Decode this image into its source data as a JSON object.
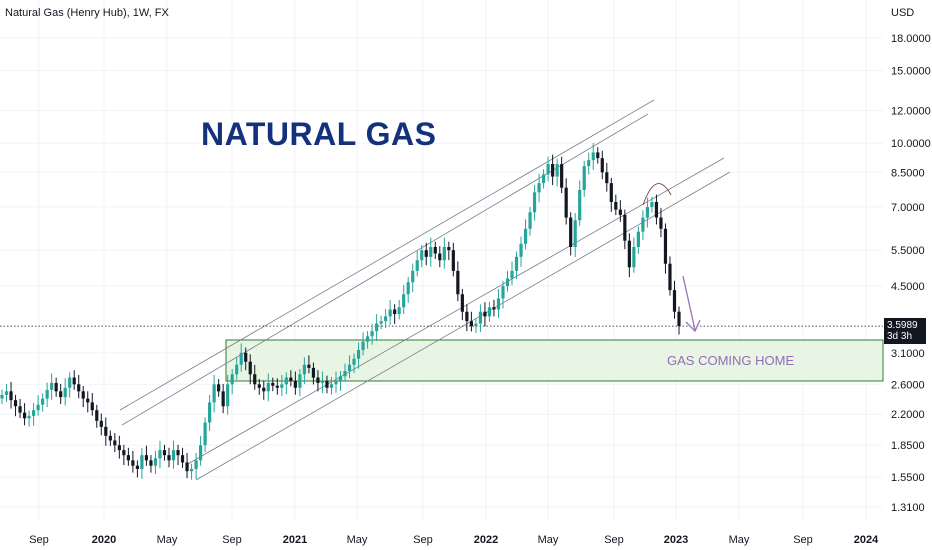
{
  "header": {
    "symbol_line": "Natural Gas (Henry Hub), 1W, FX",
    "currency": "USD"
  },
  "annotations": {
    "title": "NATURAL GAS",
    "zone_label": "GAS COMING HOME"
  },
  "last_price": {
    "price": "3.5989",
    "countdown": "3d 3h"
  },
  "colors": {
    "up": "#26a69a",
    "down": "#131722",
    "channel": "#787b86",
    "zone_fill": "#e8f4e4",
    "zone_border": "#2e7d32",
    "arrow": "#9c7bb8",
    "title": "#14317d"
  },
  "chart_data": {
    "type": "candlestick",
    "y_scale": "log",
    "y_ticks": [
      "18.0000",
      "15.0000",
      "12.0000",
      "10.0000",
      "8.5000",
      "7.0000",
      "5.5000",
      "4.5000",
      "3.1000",
      "2.6000",
      "2.2000",
      "1.8500",
      "1.5500",
      "1.3100"
    ],
    "x_ticks": [
      {
        "label": "Sep",
        "year": false
      },
      {
        "label": "2020",
        "year": true
      },
      {
        "label": "May",
        "year": false
      },
      {
        "label": "Sep",
        "year": false
      },
      {
        "label": "2021",
        "year": true
      },
      {
        "label": "May",
        "year": false
      },
      {
        "label": "Sep",
        "year": false
      },
      {
        "label": "2022",
        "year": true
      },
      {
        "label": "May",
        "year": false
      },
      {
        "label": "Sep",
        "year": false
      },
      {
        "label": "2023",
        "year": true
      },
      {
        "label": "May",
        "year": false
      },
      {
        "label": "Sep",
        "year": false
      },
      {
        "label": "2024",
        "year": true
      }
    ],
    "closes": [
      2.45,
      2.5,
      2.38,
      2.3,
      2.22,
      2.15,
      2.18,
      2.25,
      2.32,
      2.4,
      2.52,
      2.62,
      2.5,
      2.42,
      2.55,
      2.7,
      2.6,
      2.5,
      2.4,
      2.35,
      2.25,
      2.12,
      2.05,
      1.95,
      1.9,
      1.85,
      1.8,
      1.75,
      1.7,
      1.65,
      1.62,
      1.75,
      1.7,
      1.65,
      1.72,
      1.8,
      1.75,
      1.7,
      1.8,
      1.75,
      1.68,
      1.6,
      1.62,
      1.7,
      1.85,
      2.1,
      2.35,
      2.6,
      2.5,
      2.3,
      2.6,
      2.75,
      2.9,
      3.1,
      2.95,
      2.75,
      2.6,
      2.55,
      2.5,
      2.62,
      2.58,
      2.55,
      2.6,
      2.7,
      2.65,
      2.55,
      2.75,
      2.9,
      2.85,
      2.7,
      2.62,
      2.65,
      2.55,
      2.6,
      2.65,
      2.72,
      2.8,
      2.9,
      3.0,
      3.15,
      3.3,
      3.4,
      3.5,
      3.65,
      3.7,
      3.8,
      3.95,
      3.85,
      4.0,
      4.3,
      4.6,
      4.9,
      5.2,
      5.5,
      5.3,
      5.6,
      5.4,
      5.2,
      5.6,
      5.5,
      4.9,
      4.3,
      3.9,
      3.7,
      3.6,
      3.65,
      3.9,
      3.8,
      4.0,
      3.95,
      4.2,
      4.5,
      4.7,
      4.9,
      5.3,
      5.7,
      6.2,
      6.8,
      7.6,
      8.0,
      8.4,
      8.9,
      8.3,
      8.9,
      7.8,
      6.6,
      5.6,
      6.5,
      7.7,
      8.8,
      9.1,
      9.5,
      9.2,
      8.5,
      8.0,
      7.2,
      6.9,
      6.7,
      5.8,
      5.0,
      5.6,
      6.1,
      6.6,
      7.0,
      7.2,
      6.6,
      6.2,
      5.1,
      4.4,
      3.9,
      3.6
    ]
  }
}
